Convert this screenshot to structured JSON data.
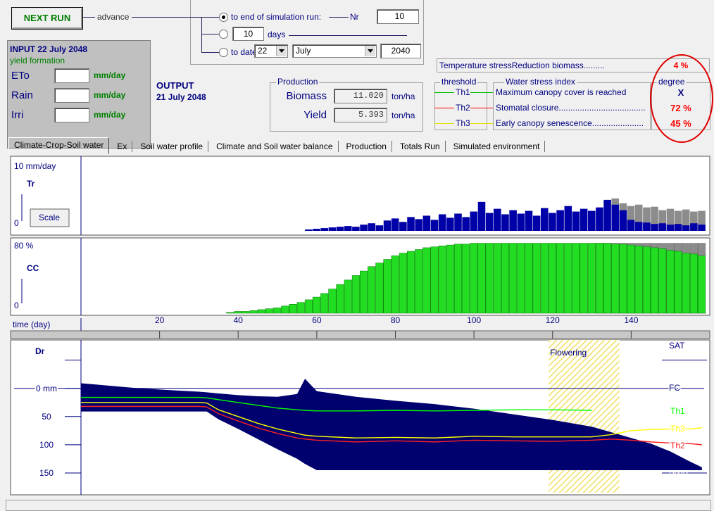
{
  "toolbar": {
    "next_run": "NEXT RUN",
    "advance": "advance",
    "run_options": {
      "end_of_run": "to end of simulation run:",
      "nr_label": "Nr",
      "nr_value": "10",
      "days_value": "10",
      "days_label": "days",
      "to_date": "to date",
      "date_day": "22",
      "date_month": "July",
      "date_year": "2040"
    }
  },
  "input": {
    "title": "INPUT 22 July 2048",
    "stage": "yield formation",
    "rows": [
      {
        "label": "ETo",
        "unit": "mm/day"
      },
      {
        "label": "Rain",
        "unit": "mm/day"
      },
      {
        "label": "Irri",
        "unit": "mm/day"
      }
    ]
  },
  "output": {
    "title": "OUTPUT",
    "date": "21 July 2048"
  },
  "production": {
    "title": "Production",
    "rows": [
      {
        "label": "Biomass",
        "value": "11.020",
        "unit": "ton/ha"
      },
      {
        "label": "Yield",
        "value": "5.393",
        "unit": "ton/ha"
      }
    ]
  },
  "stress": {
    "temperature": {
      "label": "Temperature stressReduction biomass.........",
      "degree": "4 %",
      "degree_color": "#ff0000"
    },
    "threshold_title": "threshold",
    "index_title": "Water stress index",
    "degree_title": "degree",
    "rows": [
      {
        "threshold": "Th1",
        "label": "Maximum canopy cover is reached",
        "degree": "X",
        "line_color": "#00c000",
        "degree_color": "#000080"
      },
      {
        "threshold": "Th2",
        "label": "Stomatal closure..........................................",
        "degree": "72 %",
        "line_color": "#ff0000",
        "degree_color": "#ff0000"
      },
      {
        "threshold": "Th3",
        "label": "Early canopy senescence......................",
        "degree": "45 %",
        "line_color": "#e0e000",
        "degree_color": "#ff0000"
      }
    ]
  },
  "tabs": [
    "Climate-Crop-Soil water",
    "Ex",
    "Soil water profile",
    "Climate and Soil water balance",
    "Production",
    "Totals Run",
    "Simulated environment"
  ],
  "charts": {
    "time_axis": {
      "label": "time (day)",
      "xlim": [
        0,
        160
      ],
      "xticks": [
        20,
        40,
        60,
        80,
        100,
        120,
        140
      ]
    },
    "tr": {
      "name": "Tr",
      "scale_button": "Scale",
      "ylim": [
        0,
        10
      ],
      "yticks": [
        {
          "value": 0,
          "label": "0"
        },
        {
          "value": 10,
          "label": "10 mm/day"
        }
      ],
      "series": [
        {
          "color": "#8c8c8c",
          "x": [
            136,
            138,
            140,
            142,
            144,
            146,
            148,
            150,
            152,
            154,
            156,
            158
          ],
          "values": [
            4.7,
            4.0,
            3.6,
            3.8,
            3.4,
            3.5,
            3.0,
            3.2,
            2.9,
            3.1,
            2.8,
            2.9
          ]
        },
        {
          "color": "#0000a8",
          "x": [
            58,
            60,
            62,
            64,
            66,
            68,
            70,
            72,
            74,
            76,
            78,
            80,
            82,
            84,
            86,
            88,
            90,
            92,
            94,
            96,
            98,
            100,
            102,
            104,
            106,
            108,
            110,
            112,
            114,
            116,
            118,
            120,
            122,
            124,
            126,
            128,
            130,
            132,
            134,
            136,
            138,
            140,
            142,
            144,
            146,
            148,
            150,
            152,
            154,
            156,
            158
          ],
          "values": [
            0.2,
            0.3,
            0.4,
            0.5,
            0.6,
            0.7,
            0.6,
            0.9,
            1.1,
            0.8,
            1.5,
            1.8,
            1.3,
            2.0,
            1.7,
            2.2,
            1.6,
            2.4,
            1.9,
            2.5,
            2.0,
            2.8,
            4.2,
            2.6,
            3.2,
            2.4,
            3.0,
            2.5,
            2.9,
            2.2,
            3.3,
            2.6,
            3.0,
            3.6,
            2.8,
            3.2,
            2.9,
            3.4,
            4.5,
            3.8,
            3.0,
            1.6,
            1.3,
            1.2,
            1.0,
            1.1,
            0.9,
            1.0,
            0.8,
            1.1,
            0.9
          ]
        }
      ]
    },
    "cc": {
      "name": "CC",
      "ylim": [
        0,
        80
      ],
      "yticks": [
        {
          "value": 0,
          "label": "0"
        },
        {
          "value": 80,
          "label": "80 %"
        }
      ],
      "series": [
        {
          "color": "#8c8c8c",
          "edge": "#6a6a6a",
          "x": [
            132,
            134,
            136,
            138,
            140,
            142,
            144,
            146,
            148,
            150,
            152,
            154,
            156,
            158
          ],
          "values": [
            78,
            78,
            78,
            78,
            78,
            78,
            78,
            78,
            78,
            78,
            78,
            78,
            78,
            78
          ]
        },
        {
          "color": "#22dd22",
          "edge": "#007a00",
          "x": [
            38,
            40,
            42,
            44,
            46,
            48,
            50,
            52,
            54,
            56,
            58,
            60,
            62,
            64,
            66,
            68,
            70,
            72,
            74,
            76,
            78,
            80,
            82,
            84,
            86,
            88,
            90,
            92,
            94,
            96,
            98,
            100,
            102,
            104,
            106,
            108,
            110,
            112,
            114,
            116,
            118,
            120,
            122,
            124,
            126,
            128,
            130,
            132,
            134,
            136,
            138,
            140,
            142,
            144,
            146,
            148,
            150,
            152,
            154,
            156,
            158
          ],
          "values": [
            1,
            2,
            2,
            3,
            4,
            5,
            6,
            8,
            10,
            12,
            15,
            18,
            22,
            27,
            32,
            37,
            42,
            47,
            52,
            56,
            60,
            64,
            67,
            69,
            71,
            73,
            74,
            75,
            76,
            77,
            77,
            78,
            78,
            78,
            78,
            78,
            78,
            78,
            78,
            78,
            78,
            78,
            78,
            78,
            78,
            78,
            78,
            78,
            78,
            77,
            77,
            76,
            75,
            74,
            73,
            72,
            70,
            69,
            67,
            66,
            64
          ]
        }
      ]
    },
    "dr": {
      "name": "Dr",
      "ylim": [
        -92,
        185
      ],
      "yticks": [
        {
          "value": 0,
          "label": "0 mm"
        },
        50,
        100,
        150
      ],
      "levels": [
        {
          "label": "SAT",
          "value": -50,
          "line": "tick"
        },
        {
          "label": "FC",
          "value": 0,
          "line": "across"
        },
        {
          "label": "PWP",
          "value": 150,
          "line": "tick"
        }
      ],
      "flowering": {
        "label": "Flowering",
        "start": 119,
        "end": 137
      },
      "days": [
        0,
        5,
        10,
        15,
        20,
        25,
        30,
        32,
        35,
        40,
        45,
        50,
        55,
        57,
        60,
        70,
        80,
        90,
        100,
        110,
        120,
        130,
        135,
        140,
        145,
        150,
        155,
        158
      ],
      "depletion": {
        "color": "#00006e",
        "top": [
          -9,
          -6,
          -3,
          0,
          2,
          4,
          6,
          7,
          9,
          12,
          14,
          15,
          10,
          -17,
          5,
          15,
          22,
          28,
          36,
          46,
          56,
          68,
          78,
          88,
          98,
          112,
          130,
          140
        ],
        "bottom": [
          41,
          41,
          41,
          41,
          41,
          41,
          41,
          41,
          55,
          72,
          90,
          108,
          125,
          134,
          145,
          145,
          145,
          145,
          145,
          145,
          145,
          145,
          145,
          145,
          145,
          145,
          145,
          145
        ]
      },
      "thresholds": [
        {
          "label": "Th1",
          "color": "#00ff00",
          "values": [
            16,
            16,
            16,
            16,
            16,
            16,
            16,
            17,
            20,
            25,
            30,
            35,
            38,
            39,
            40,
            40,
            39,
            40,
            39,
            38,
            38,
            39,
            null,
            null,
            null,
            null,
            null,
            null
          ]
        },
        {
          "label": "Th2",
          "color": "#ff2020",
          "values": [
            32,
            32,
            32,
            32,
            32,
            32,
            32,
            33,
            45,
            58,
            70,
            80,
            88,
            90,
            92,
            95,
            93,
            95,
            92,
            93,
            94,
            92,
            90,
            92,
            95,
            97,
            98,
            100
          ]
        },
        {
          "label": "Th3",
          "color": "#ffff00",
          "values": [
            25,
            25,
            25,
            25,
            25,
            25,
            25,
            26,
            38,
            50,
            62,
            72,
            80,
            83,
            85,
            88,
            87,
            88,
            85,
            86,
            86,
            86,
            82,
            75,
            73,
            72,
            72,
            70
          ]
        }
      ]
    }
  }
}
